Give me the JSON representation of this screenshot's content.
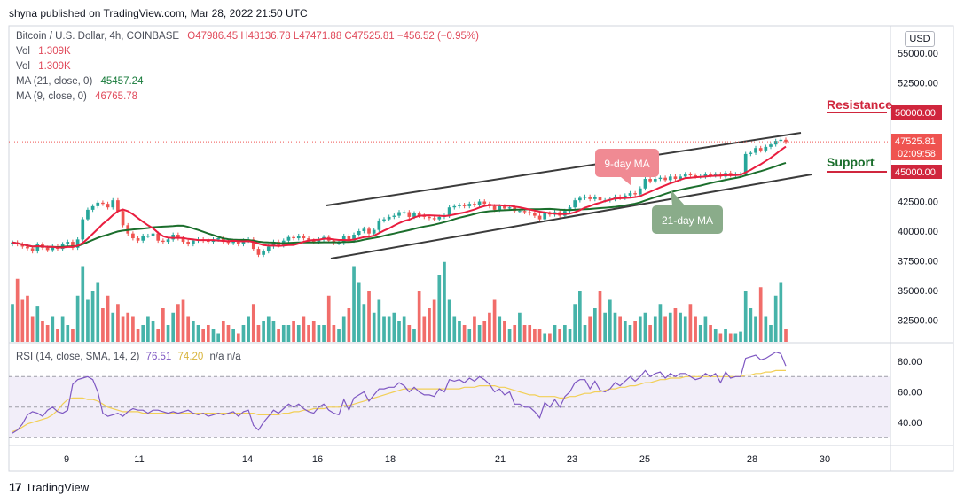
{
  "header": {
    "published": "shyna published on TradingView.com, Mar 28, 2022 21:50 UTC"
  },
  "legend": {
    "symbol": "Bitcoin / U.S. Dollar, 4h, COINBASE",
    "ohlc": "O47986.45  H48136.78  L47471.88  C47525.81  −456.52 (−0.95%)",
    "vol1_label": "Vol",
    "vol1_value": "1.309K",
    "vol2_label": "Vol",
    "vol2_value": "1.309K",
    "ma21_label": "MA (21, close, 0)",
    "ma21_value": "45457.24",
    "ma9_label": "MA (9, close, 0)",
    "ma9_value": "46765.78"
  },
  "rsi_legend": {
    "label": "RSI (14, close, SMA, 14, 2)",
    "rsi_value": "76.51",
    "sma_value": "74.20",
    "na": "n/a  n/a"
  },
  "currency": "USD",
  "annotations": {
    "resistance": "Resistance",
    "support": "Support",
    "ma9_tag": "9-day MA",
    "ma21_tag": "21-day MA"
  },
  "price_badges": {
    "resistance": "50000.00",
    "last": "47525.81",
    "countdown": "02:09:58",
    "support": "45000.00"
  },
  "footer": {
    "brand": "TradingView"
  },
  "colors": {
    "up": "#26a69a",
    "down": "#ef5350",
    "ma9": "#e91e3f",
    "ma21": "#1b6e2c",
    "rsi": "#7e57c2",
    "rsi_sma": "#f2cf56",
    "channel": "#3b3b3b",
    "level": "#d0263d"
  },
  "chart_data": [
    {
      "type": "candlestick",
      "title": "Bitcoin / U.S. Dollar, 4h, COINBASE",
      "xlabel": "",
      "ylabel": "",
      "ylim": [
        30500,
        56500
      ],
      "x_ticks": [
        "9",
        "11",
        "14",
        "16",
        "18",
        "21",
        "23",
        "25",
        "28",
        "30"
      ],
      "y_ticks": [
        "55000.00",
        "52500.00",
        "50000.00",
        "47500.00",
        "45000.00",
        "42500.00",
        "40000.00",
        "37500.00",
        "35000.00",
        "32500.00"
      ],
      "close_series_estimate": [
        39050,
        38900,
        38700,
        38550,
        38300,
        38900,
        38600,
        38400,
        38700,
        38500,
        38900,
        39100,
        38600,
        39300,
        41000,
        41800,
        42100,
        42400,
        42300,
        42000,
        42600,
        41700,
        40500,
        39800,
        39400,
        39200,
        39600,
        39600,
        39800,
        39200,
        39100,
        39300,
        39700,
        39400,
        39100,
        38900,
        39200,
        39300,
        39200,
        39100,
        39300,
        39400,
        39100,
        39000,
        39100,
        38900,
        39200,
        39300,
        38500,
        38000,
        38300,
        38700,
        39100,
        38800,
        39200,
        39500,
        39400,
        39600,
        39400,
        39200,
        39100,
        39300,
        39500,
        39200,
        39000,
        39000,
        39600,
        39200,
        39700,
        40000,
        40200,
        39800,
        40100,
        40900,
        41000,
        41200,
        41300,
        41600,
        41600,
        41200,
        41500,
        41300,
        41200,
        41100,
        41000,
        41200,
        41300,
        42000,
        42100,
        42200,
        42100,
        42300,
        42200,
        42500,
        42300,
        42100,
        41800,
        42100,
        41900,
        42000,
        41700,
        41700,
        41600,
        41500,
        41300,
        41000,
        41500,
        41400,
        41600,
        41300,
        41700,
        42000,
        42600,
        42800,
        42900,
        42700,
        42900,
        42600,
        42600,
        42700,
        42900,
        42800,
        43000,
        43200,
        43100,
        43600,
        44400,
        44200,
        44400,
        44500,
        44300,
        44600,
        44400,
        44600,
        44800,
        44700,
        44600,
        44600,
        44800,
        44700,
        44800,
        44600,
        44900,
        44700,
        44800,
        44800,
        46500,
        46600,
        47000,
        46800,
        47100,
        47300,
        47600,
        47700,
        47500
      ],
      "ma9_estimate_anchor": "46765.78",
      "ma21_estimate_anchor": "45457.24",
      "levels": [
        {
          "name": "Resistance",
          "value": 50000
        },
        {
          "name": "Support",
          "value": 45000
        }
      ],
      "last_price": 47525.81
    },
    {
      "type": "bar",
      "title": "Vol",
      "volume_estimate": [
        0.45,
        0.75,
        0.5,
        0.55,
        0.3,
        0.42,
        0.25,
        0.2,
        0.3,
        0.15,
        0.3,
        0.2,
        0.15,
        0.55,
        0.9,
        0.5,
        0.6,
        0.7,
        0.4,
        0.55,
        0.35,
        0.45,
        0.3,
        0.35,
        0.3,
        0.15,
        0.2,
        0.3,
        0.25,
        0.15,
        0.4,
        0.2,
        0.35,
        0.45,
        0.5,
        0.3,
        0.25,
        0.2,
        0.15,
        0.2,
        0.15,
        0.1,
        0.25,
        0.2,
        0.15,
        0.1,
        0.2,
        0.3,
        0.45,
        0.2,
        0.25,
        0.3,
        0.25,
        0.15,
        0.2,
        0.2,
        0.25,
        0.2,
        0.3,
        0.2,
        0.25,
        0.2,
        0.2,
        0.55,
        0.2,
        0.15,
        0.3,
        0.4,
        0.9,
        0.7,
        0.45,
        0.6,
        0.35,
        0.5,
        0.3,
        0.3,
        0.35,
        0.25,
        0.3,
        0.2,
        0.15,
        0.6,
        0.3,
        0.4,
        0.5,
        0.8,
        0.95,
        0.5,
        0.3,
        0.25,
        0.2,
        0.15,
        0.3,
        0.2,
        0.25,
        0.35,
        0.5,
        0.3,
        0.25,
        0.15,
        0.2,
        0.35,
        0.2,
        0.2,
        0.15,
        0.15,
        0.1,
        0.1,
        0.2,
        0.15,
        0.2,
        0.15,
        0.45,
        0.6,
        0.2,
        0.3,
        0.4,
        0.6,
        0.35,
        0.5,
        0.35,
        0.3,
        0.25,
        0.2,
        0.25,
        0.3,
        0.35,
        0.2,
        0.3,
        0.45,
        0.3,
        0.35,
        0.4,
        0.35,
        0.3,
        0.45,
        0.3,
        0.2,
        0.3,
        0.2,
        0.15,
        0.1,
        0.15,
        0.1,
        0.1,
        0.12,
        0.6,
        0.4,
        0.3,
        0.65,
        0.3,
        0.2,
        0.55,
        0.7,
        0.15
      ]
    },
    {
      "type": "line",
      "title": "RSI (14, close, SMA, 14, 2)",
      "ylim": [
        25,
        90
      ],
      "y_ticks": [
        "80.00",
        "60.00",
        "40.00"
      ],
      "bands": [
        30,
        50,
        70
      ],
      "rsi_estimate": [
        33,
        35,
        39,
        45,
        47,
        46,
        44,
        48,
        50,
        47,
        46,
        48,
        65,
        68,
        69,
        70,
        68,
        60,
        46,
        44,
        45,
        46,
        44,
        47,
        49,
        48,
        48,
        46,
        48,
        48,
        47,
        46,
        47,
        46,
        47,
        48,
        46,
        45,
        46,
        44,
        45,
        46,
        45,
        46,
        47,
        44,
        47,
        48,
        38,
        35,
        40,
        44,
        48,
        46,
        49,
        52,
        50,
        52,
        49,
        47,
        46,
        50,
        52,
        48,
        46,
        45,
        55,
        48,
        56,
        58,
        60,
        54,
        58,
        62,
        62,
        63,
        63,
        66,
        64,
        60,
        63,
        60,
        58,
        58,
        57,
        62,
        60,
        68,
        67,
        68,
        66,
        69,
        67,
        70,
        68,
        65,
        60,
        62,
        58,
        60,
        52,
        52,
        50,
        50,
        47,
        43,
        53,
        50,
        55,
        50,
        57,
        60,
        66,
        68,
        68,
        62,
        67,
        61,
        60,
        62,
        66,
        64,
        67,
        70,
        67,
        70,
        74,
        70,
        72,
        73,
        69,
        72,
        70,
        72,
        72,
        70,
        68,
        69,
        72,
        70,
        72,
        66,
        73,
        69,
        70,
        70,
        82,
        83,
        84,
        81,
        82,
        84,
        86,
        85,
        77
      ],
      "sma_estimate": [
        34,
        35,
        37,
        39,
        40,
        41,
        42,
        43,
        45,
        48,
        52,
        55,
        56,
        56,
        56,
        55,
        55,
        54,
        52,
        50,
        49,
        48,
        47,
        47,
        47,
        47,
        46,
        46,
        46,
        46,
        46,
        46,
        46,
        46,
        46,
        46,
        46,
        46,
        46,
        46,
        46,
        46,
        46,
        46,
        46,
        46,
        46,
        46,
        46,
        45,
        45,
        45,
        45,
        45,
        46,
        46,
        47,
        47,
        48,
        48,
        49,
        49,
        49,
        50,
        50,
        50,
        51,
        51,
        52,
        53,
        54,
        55,
        56,
        57,
        58,
        59,
        60,
        61,
        62,
        62,
        62,
        62,
        62,
        62,
        62,
        62,
        62,
        62,
        62,
        62,
        63,
        63,
        63,
        64,
        64,
        64,
        64,
        63,
        63,
        62,
        61,
        60,
        59,
        58,
        58,
        57,
        57,
        57,
        57,
        56,
        56,
        57,
        57,
        58,
        59,
        59,
        60,
        60,
        61,
        62,
        62,
        63,
        63,
        64,
        64,
        65,
        66,
        66,
        67,
        68,
        68,
        69,
        69,
        69,
        70,
        70,
        70,
        70,
        70,
        70,
        70,
        70,
        70,
        70,
        70,
        70,
        71,
        71,
        72,
        72,
        73,
        73,
        74,
        74,
        74
      ]
    }
  ]
}
